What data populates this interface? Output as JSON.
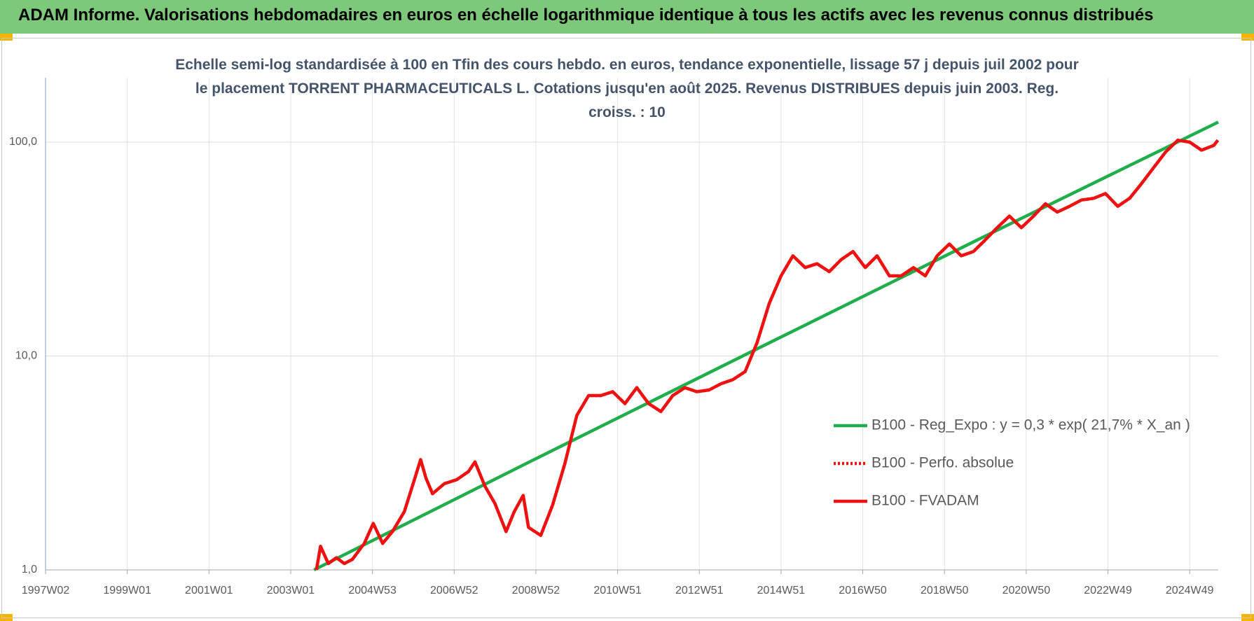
{
  "header": {
    "title": "ADAM Informe. Valorisations hebdomadaires en euros en échelle logarithmique identique à tous les actifs avec les revenus connus distribués"
  },
  "chart_data": {
    "type": "line",
    "title": "Echelle semi-log standardisée à 100 en Tfin des cours hebdo. en euros, tendance exponentielle, lissage 57 j depuis juil 2002 pour le placement TORRENT PHARMACEUTICALS L. Cotations jusqu'en août 2025. Revenus DISTRIBUES depuis juin 2003. Reg. croiss. : 10",
    "log_y": true,
    "grid": true,
    "legend": "right",
    "xlim": [
      1997.0,
      2025.7
    ],
    "xticks": [
      {
        "value": 1997.0,
        "label": "1997W02"
      },
      {
        "value": 1999.0,
        "label": "1999W01"
      },
      {
        "value": 2001.0,
        "label": "2001W01"
      },
      {
        "value": 2003.0,
        "label": "2003W01"
      },
      {
        "value": 2005.0,
        "label": "2004W53"
      },
      {
        "value": 2007.0,
        "label": "2006W52"
      },
      {
        "value": 2009.0,
        "label": "2008W52"
      },
      {
        "value": 2011.0,
        "label": "2010W51"
      },
      {
        "value": 2013.0,
        "label": "2012W51"
      },
      {
        "value": 2015.0,
        "label": "2014W51"
      },
      {
        "value": 2017.0,
        "label": "2016W50"
      },
      {
        "value": 2019.0,
        "label": "2018W50"
      },
      {
        "value": 2021.0,
        "label": "2020W50"
      },
      {
        "value": 2023.0,
        "label": "2022W49"
      },
      {
        "value": 2025.0,
        "label": "2024W49"
      }
    ],
    "ylim": [
      1,
      200
    ],
    "yticks": [
      {
        "value": 1,
        "label": "1,0"
      },
      {
        "value": 10,
        "label": "10,0"
      },
      {
        "value": 100,
        "label": "100,0"
      }
    ],
    "series": [
      {
        "name": "B100 - Reg_Expo : y = 0,3 * exp( 21,7% *  X_an )",
        "color": "#1fae4b",
        "style": "solid",
        "x": [
          2003.57,
          2009.0,
          2014.5,
          2020.0,
          2025.7
        ],
        "values": [
          1.0,
          3.31,
          11.0,
          36.4,
          124
        ]
      },
      {
        "name": "B100 - Perfo. absolue",
        "color": "#ee1111",
        "style": "dotted",
        "x": [
          2003.63,
          2003.73,
          2003.92,
          2004.12,
          2004.31,
          2004.51,
          2004.8,
          2005.02,
          2005.25,
          2005.49,
          2005.78,
          2006.04,
          2006.18,
          2006.31,
          2006.47,
          2006.76,
          2007.06,
          2007.35,
          2007.51,
          2007.75,
          2008.0,
          2008.27,
          2008.47,
          2008.69,
          2008.82,
          2009.12,
          2009.41,
          2009.71,
          2010.0,
          2010.29,
          2010.59,
          2010.88,
          2011.18,
          2011.47,
          2011.76,
          2012.06,
          2012.35,
          2012.65,
          2012.94,
          2013.24,
          2013.53,
          2013.82,
          2014.12,
          2014.41,
          2014.71,
          2015.0,
          2015.29,
          2015.59,
          2015.88,
          2016.18,
          2016.47,
          2016.76,
          2017.06,
          2017.35,
          2017.65,
          2017.94,
          2018.24,
          2018.53,
          2018.82,
          2019.12,
          2019.41,
          2019.71,
          2020.0,
          2020.29,
          2020.59,
          2020.88,
          2021.18,
          2021.47,
          2021.76,
          2022.06,
          2022.35,
          2022.65,
          2022.94,
          2023.24,
          2023.53,
          2023.82,
          2024.12,
          2024.41,
          2024.71,
          2025.0,
          2025.29,
          2025.59,
          2025.69
        ],
        "values": [
          1.0,
          1.29,
          1.07,
          1.14,
          1.07,
          1.12,
          1.33,
          1.65,
          1.33,
          1.51,
          1.87,
          2.69,
          3.28,
          2.69,
          2.27,
          2.53,
          2.64,
          2.88,
          3.2,
          2.47,
          2.04,
          1.51,
          1.87,
          2.23,
          1.58,
          1.45,
          2.01,
          3.14,
          5.27,
          6.53,
          6.53,
          6.81,
          5.99,
          7.11,
          5.99,
          5.5,
          6.53,
          7.11,
          6.81,
          6.94,
          7.42,
          7.75,
          8.45,
          11.5,
          17.6,
          23.7,
          29.4,
          25.9,
          27.0,
          24.8,
          28.2,
          30.8,
          25.9,
          29.4,
          23.7,
          23.7,
          25.9,
          23.7,
          29.4,
          33.4,
          29.4,
          30.8,
          34.9,
          39.8,
          45.1,
          39.8,
          45.1,
          51.5,
          47.1,
          50.1,
          53.6,
          54.6,
          57.5,
          50.1,
          54.6,
          63.9,
          76.0,
          89.9,
          102,
          100,
          91.7,
          96.5,
          102
        ]
      },
      {
        "name": "B100 - FVADAM",
        "color": "#ee1111",
        "style": "solid",
        "x": [
          2003.63,
          2003.73,
          2003.92,
          2004.12,
          2004.31,
          2004.51,
          2004.8,
          2005.02,
          2005.25,
          2005.49,
          2005.78,
          2006.04,
          2006.18,
          2006.31,
          2006.47,
          2006.76,
          2007.06,
          2007.35,
          2007.51,
          2007.75,
          2008.0,
          2008.27,
          2008.47,
          2008.69,
          2008.82,
          2009.12,
          2009.41,
          2009.71,
          2010.0,
          2010.29,
          2010.59,
          2010.88,
          2011.18,
          2011.47,
          2011.76,
          2012.06,
          2012.35,
          2012.65,
          2012.94,
          2013.24,
          2013.53,
          2013.82,
          2014.12,
          2014.41,
          2014.71,
          2015.0,
          2015.29,
          2015.59,
          2015.88,
          2016.18,
          2016.47,
          2016.76,
          2017.06,
          2017.35,
          2017.65,
          2017.94,
          2018.24,
          2018.53,
          2018.82,
          2019.12,
          2019.41,
          2019.71,
          2020.0,
          2020.29,
          2020.59,
          2020.88,
          2021.18,
          2021.47,
          2021.76,
          2022.06,
          2022.35,
          2022.65,
          2022.94,
          2023.24,
          2023.53,
          2023.82,
          2024.12,
          2024.41,
          2024.71,
          2025.0,
          2025.29,
          2025.59,
          2025.69
        ],
        "values": [
          1.0,
          1.29,
          1.07,
          1.14,
          1.07,
          1.12,
          1.33,
          1.65,
          1.33,
          1.51,
          1.87,
          2.69,
          3.28,
          2.69,
          2.27,
          2.53,
          2.64,
          2.88,
          3.2,
          2.47,
          2.04,
          1.51,
          1.87,
          2.23,
          1.58,
          1.45,
          2.01,
          3.14,
          5.27,
          6.53,
          6.53,
          6.81,
          5.99,
          7.11,
          5.99,
          5.5,
          6.53,
          7.11,
          6.81,
          6.94,
          7.42,
          7.75,
          8.45,
          11.5,
          17.6,
          23.7,
          29.4,
          25.9,
          27.0,
          24.8,
          28.2,
          30.8,
          25.9,
          29.4,
          23.7,
          23.7,
          25.9,
          23.7,
          29.4,
          33.4,
          29.4,
          30.8,
          34.9,
          39.8,
          45.1,
          39.8,
          45.1,
          51.5,
          47.1,
          50.1,
          53.6,
          54.6,
          57.5,
          50.1,
          54.6,
          63.9,
          76.0,
          89.9,
          102,
          100,
          91.7,
          96.5,
          102
        ]
      }
    ]
  }
}
